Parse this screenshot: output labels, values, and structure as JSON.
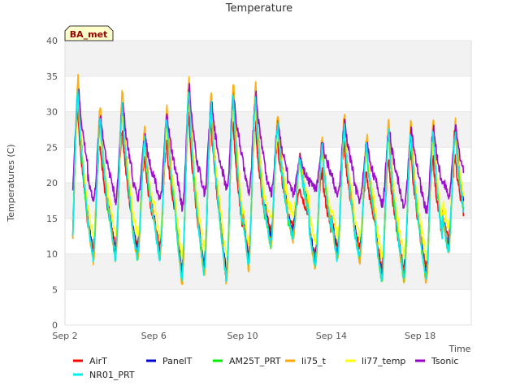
{
  "chart_data": {
    "type": "line",
    "title": "Temperature",
    "xlabel": "Time",
    "ylabel": "Temperatures (C)",
    "badge": "BA_met",
    "ylim": [
      0,
      40
    ],
    "yticks": [
      0,
      5,
      10,
      15,
      20,
      25,
      30,
      35,
      40
    ],
    "xlim_days": [
      2,
      20.3
    ],
    "xticks": [
      {
        "day": 2,
        "label": "Sep 2"
      },
      {
        "day": 6,
        "label": "Sep 6"
      },
      {
        "day": 10,
        "label": "Sep 10"
      },
      {
        "day": 14,
        "label": "Sep 14"
      },
      {
        "day": 18,
        "label": "Sep 18"
      }
    ],
    "grid_bands": true,
    "legend_position": "bottom",
    "daily_extremes": {
      "dates": [
        "Sep 2",
        "Sep 3",
        "Sep 4",
        "Sep 5",
        "Sep 6",
        "Sep 7",
        "Sep 8",
        "Sep 9",
        "Sep 10",
        "Sep 11",
        "Sep 12",
        "Sep 13",
        "Sep 14",
        "Sep 15",
        "Sep 16",
        "Sep 17",
        "Sep 18",
        "Sep 19"
      ],
      "max": [
        34,
        30,
        32,
        27,
        30,
        34,
        32,
        33,
        33,
        29,
        24,
        26,
        29,
        26,
        28,
        28,
        28,
        28
      ],
      "min": [
        9,
        10,
        10,
        10,
        10,
        7,
        8,
        7,
        9,
        12,
        13,
        9,
        10,
        10,
        7,
        7,
        7,
        11
      ]
    },
    "series": [
      {
        "name": "AirT",
        "color": "#ff0000",
        "amp": 0.82,
        "offset": 1.5,
        "minoff": 1.0,
        "phase": -0.01
      },
      {
        "name": "PanelT",
        "color": "#0000cc",
        "amp": 0.98,
        "offset": 0.0,
        "minoff": 0.0,
        "phase": 0.0
      },
      {
        "name": "AM25T_PRT",
        "color": "#00ee00",
        "amp": 0.96,
        "offset": -0.3,
        "minoff": -0.6,
        "phase": 0.0
      },
      {
        "name": "li75_t",
        "color": "#ffaa00",
        "amp": 1.03,
        "offset": 0.3,
        "minoff": -1.0,
        "phase": 0.005
      },
      {
        "name": "li77_temp",
        "color": "#ffff00",
        "amp": 0.93,
        "offset": 1.3,
        "minoff": 2.6,
        "phase": 0.01
      },
      {
        "name": "Tsonic",
        "color": "#9900cc",
        "amp": 0.95,
        "offset": 0.5,
        "minoff": 0.0,
        "phase": 0.02
      },
      {
        "name": "NR01_PRT",
        "color": "#00eeee",
        "amp": 0.97,
        "offset": -0.6,
        "minoff": -0.5,
        "phase": -0.005
      }
    ],
    "tsonic_night_min": [
      18,
      17.5,
      17.5,
      18,
      17.5,
      16.5,
      18.5,
      19,
      18.5,
      18.5,
      18.5,
      19,
      18,
      17.5,
      17,
      16.5,
      16,
      18
    ]
  }
}
